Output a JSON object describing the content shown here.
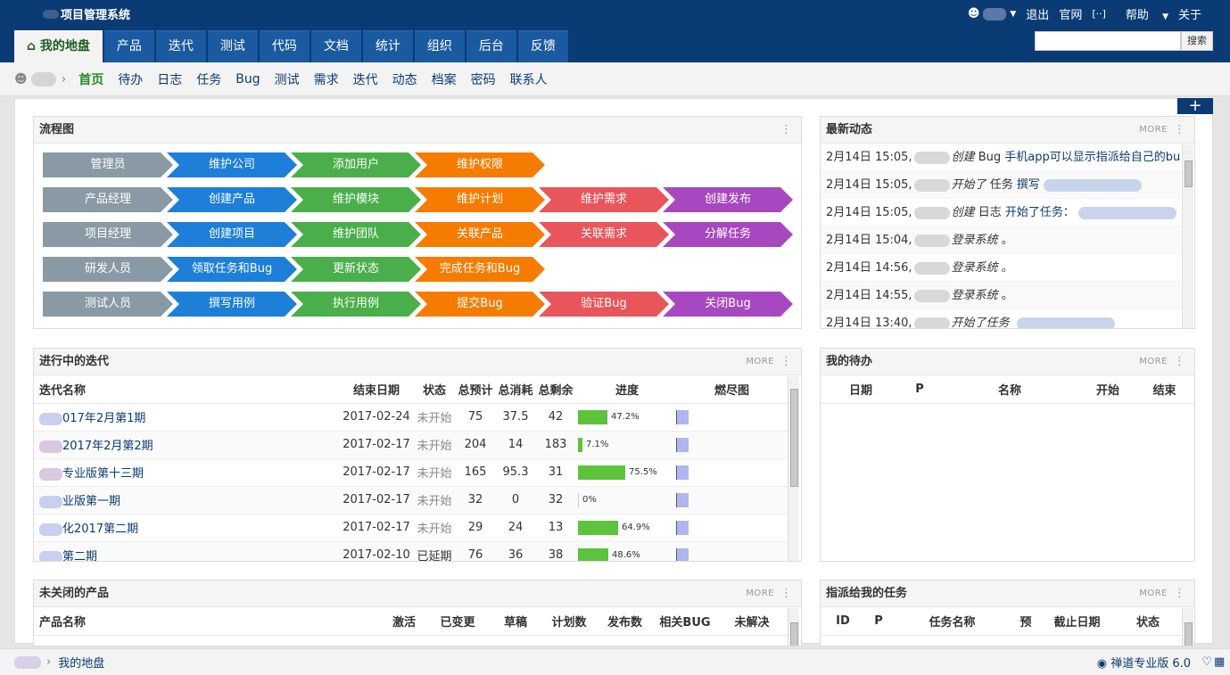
{
  "app": {
    "title": "项目管理系统"
  },
  "top_links": {
    "logout": "退出",
    "site": "官网",
    "help": "帮助",
    "about": "关于"
  },
  "main_nav": [
    "我的地盘",
    "产品",
    "迭代",
    "测试",
    "代码",
    "文档",
    "统计",
    "组织",
    "后台",
    "反馈"
  ],
  "search": {
    "button": "搜索",
    "value": ""
  },
  "sub_nav": [
    "首页",
    "待办",
    "日志",
    "任务",
    "Bug",
    "测试",
    "需求",
    "迭代",
    "动态",
    "档案",
    "密码",
    "联系人"
  ],
  "flowchart": {
    "title": "流程图",
    "rows": [
      {
        "steps": [
          "管理员",
          "维护公司",
          "添加用户",
          "维护权限"
        ],
        "colors": [
          "gray",
          "blue",
          "green",
          "orange"
        ]
      },
      {
        "steps": [
          "产品经理",
          "创建产品",
          "维护模块",
          "维护计划",
          "维护需求",
          "创建发布"
        ],
        "colors": [
          "gray",
          "blue",
          "green",
          "orange",
          "red",
          "purple"
        ]
      },
      {
        "steps": [
          "项目经理",
          "创建项目",
          "维护团队",
          "关联产品",
          "关联需求",
          "分解任务"
        ],
        "colors": [
          "gray",
          "blue",
          "green",
          "orange",
          "red",
          "purple"
        ]
      },
      {
        "steps": [
          "研发人员",
          "领取任务和Bug",
          "更新状态",
          "完成任务和Bug"
        ],
        "colors": [
          "gray",
          "blue",
          "green",
          "orange"
        ]
      },
      {
        "steps": [
          "测试人员",
          "撰写用例",
          "执行用例",
          "提交Bug",
          "验证Bug",
          "关闭Bug"
        ],
        "colors": [
          "gray",
          "blue",
          "green",
          "orange",
          "red",
          "purple"
        ]
      }
    ]
  },
  "feed": {
    "title": "最新动态",
    "more": "MORE",
    "items": [
      {
        "time": "2月14日 15:05,",
        "action": "创建",
        "type": "Bug",
        "text": "手机app可以显示指派给自己的bug低"
      },
      {
        "time": "2月14日 15:05,",
        "action": "开始了",
        "type": "任务",
        "text": "撰写"
      },
      {
        "time": "2月14日 15:05,",
        "action": "创建",
        "type": "日志",
        "text": "开始了任务："
      },
      {
        "time": "2月14日 15:04,",
        "action": "登录系统",
        "type": "",
        "text": "。"
      },
      {
        "time": "2月14日 14:56,",
        "action": "登录系统",
        "type": "",
        "text": "。"
      },
      {
        "time": "2月14日 14:55,",
        "action": "登录系统",
        "type": "",
        "text": "。"
      },
      {
        "time": "2月14日 13:40,",
        "action": "开始了任务",
        "type": "",
        "text": ""
      }
    ]
  },
  "sprints": {
    "title": "进行中的迭代",
    "more": "MORE",
    "headers": [
      "迭代名称",
      "结束日期",
      "状态",
      "总预计",
      "总消耗",
      "总剩余",
      "进度",
      "燃尽图"
    ],
    "rows": [
      {
        "name": "017年2月第1期",
        "end": "2017-02-24",
        "status": "未开始",
        "est": "75",
        "consumed": "37.5",
        "left": "42",
        "progress": "47.2%",
        "pct": 47.2
      },
      {
        "name": "2017年2月第2期",
        "end": "2017-02-17",
        "status": "未开始",
        "est": "204",
        "consumed": "14",
        "left": "183",
        "progress": "7.1%",
        "pct": 7.1
      },
      {
        "name": "专业版第十三期",
        "end": "2017-02-17",
        "status": "未开始",
        "est": "165",
        "consumed": "95.3",
        "left": "31",
        "progress": "75.5%",
        "pct": 75.5
      },
      {
        "name": "业版第一期",
        "end": "2017-02-17",
        "status": "未开始",
        "est": "32",
        "consumed": "0",
        "left": "32",
        "progress": "0%",
        "pct": 0
      },
      {
        "name": "化2017第二期",
        "end": "2017-02-17",
        "status": "未开始",
        "est": "29",
        "consumed": "24",
        "left": "13",
        "progress": "64.9%",
        "pct": 64.9
      },
      {
        "name": "第二期",
        "end": "2017-02-10",
        "status": "已延期",
        "est": "76",
        "consumed": "36",
        "left": "38",
        "progress": "48.6%",
        "pct": 48.6
      }
    ]
  },
  "todos": {
    "title": "我的待办",
    "more": "MORE",
    "headers": [
      "日期",
      "P",
      "名称",
      "开始",
      "结束"
    ]
  },
  "products": {
    "title": "未关闭的产品",
    "more": "MORE",
    "headers": [
      "产品名称",
      "激活",
      "已变更",
      "草稿",
      "计划数",
      "发布数",
      "相关BUG",
      "未解决"
    ]
  },
  "tasks": {
    "title": "指派给我的任务",
    "more": "MORE",
    "headers": [
      "ID",
      "P",
      "任务名称",
      "预",
      "截止日期",
      "状态"
    ]
  },
  "statusbar": {
    "crumb": "我的地盘",
    "version": "禅道专业版 6.0"
  }
}
